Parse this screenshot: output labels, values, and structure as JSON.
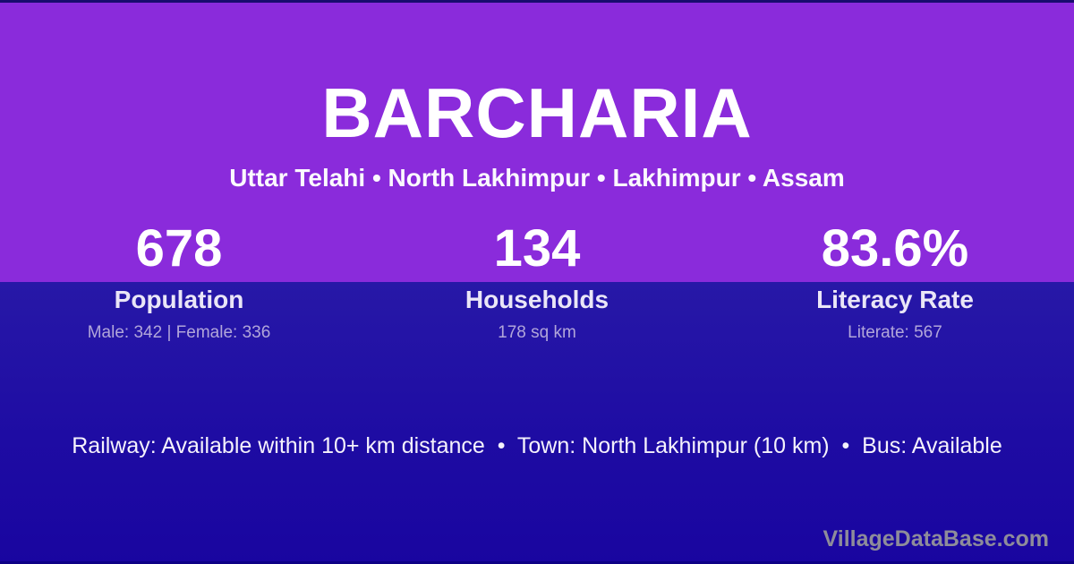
{
  "card": {
    "title": "BARCHARIA",
    "location": "Uttar Telahi • North Lakhimpur • Lakhimpur • Assam"
  },
  "stats": [
    {
      "value": "678",
      "label": "Population",
      "detail": "Male: 342 | Female: 336"
    },
    {
      "value": "134",
      "label": "Households",
      "detail": "178 sq km"
    },
    {
      "value": "83.6%",
      "label": "Literacy Rate",
      "detail": "Literate: 567"
    }
  ],
  "info": {
    "railway_label": "Railway:",
    "railway": "Available within 10+ km distance",
    "town_label": "Town:",
    "town": "North Lakhimpur (10 km)",
    "bus_label": "Bus:",
    "bus": "Available",
    "line": "Railway: Available within 10+ km distance  •  Town: North Lakhimpur (10 km)  •  Bus: Available"
  },
  "watermark": "VillageDataBase.com",
  "colors": {
    "purple_band": "#8A2BDB",
    "indigo_band_top": "#2718A7",
    "indigo_band_bottom": "#1905A0",
    "top_strip": "#190C6E",
    "bottom_strip": "#0D0185",
    "stat_detail_text": "#B1A6DA",
    "watermark_text": "#8E8C9A"
  }
}
